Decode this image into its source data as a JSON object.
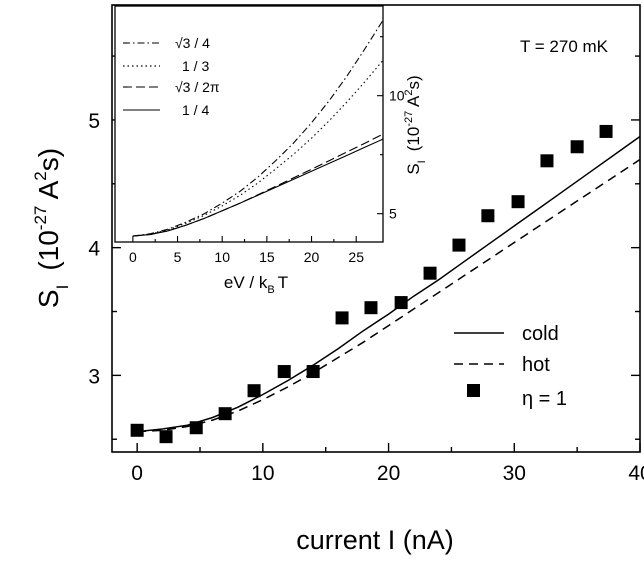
{
  "chart_data": [
    {
      "type": "line",
      "xlabel": "current I  (nA)",
      "ylabel_main": "S",
      "ylabel_sub": "I",
      "ylabel_units_open": "(10",
      "ylabel_units_exp": "-27",
      "ylabel_units_mid": " A",
      "ylabel_units_sq": "2",
      "ylabel_units_close": "s)",
      "xlim": [
        -2,
        40
      ],
      "ylim": [
        2.4,
        5.9
      ],
      "xticks": [
        "0",
        "10",
        "20",
        "30",
        "40"
      ],
      "xtick_values": [
        0,
        10,
        20,
        30,
        40
      ],
      "yticks": [
        "3",
        "4",
        "5"
      ],
      "ytick_values": [
        3,
        4,
        5
      ],
      "annotation": "T = 270 mK",
      "legend_position": "bottom-right",
      "series": [
        {
          "name": "cold",
          "style": "solid",
          "x": [
            0,
            2,
            4,
            6,
            8,
            10,
            12,
            14,
            16,
            18,
            20,
            22,
            24,
            26,
            28,
            30,
            32,
            34,
            36,
            38,
            40
          ],
          "y": [
            2.56,
            2.58,
            2.61,
            2.67,
            2.75,
            2.85,
            2.96,
            3.08,
            3.21,
            3.35,
            3.48,
            3.62,
            3.75,
            3.89,
            4.03,
            4.17,
            4.31,
            4.45,
            4.59,
            4.73,
            4.87
          ]
        },
        {
          "name": "hot",
          "style": "dashed",
          "x": [
            0,
            2,
            4,
            6,
            8,
            10,
            12,
            14,
            16,
            18,
            20,
            22,
            24,
            26,
            28,
            30,
            32,
            34,
            36,
            38,
            40
          ],
          "y": [
            2.56,
            2.57,
            2.6,
            2.65,
            2.72,
            2.81,
            2.91,
            3.02,
            3.14,
            3.26,
            3.39,
            3.52,
            3.65,
            3.78,
            3.91,
            4.04,
            4.17,
            4.3,
            4.43,
            4.56,
            4.69
          ]
        },
        {
          "name": "η = 1",
          "style": "square-markers",
          "x": [
            0,
            2.3,
            4.7,
            7.0,
            9.3,
            11.7,
            14.0,
            16.3,
            18.6,
            21.0,
            23.3,
            25.6,
            27.9,
            30.3,
            32.6,
            35.0,
            37.3
          ],
          "y": [
            2.57,
            2.52,
            2.59,
            2.7,
            2.88,
            3.03,
            3.03,
            3.45,
            3.53,
            3.57,
            3.8,
            4.02,
            4.25,
            4.36,
            4.68,
            4.79,
            4.91
          ]
        }
      ]
    },
    {
      "type": "line",
      "xlabel_main": "eV / k",
      "xlabel_sub": "B",
      "xlabel_tail": "T",
      "ylabel_main": "S",
      "ylabel_sub": "I",
      "ylabel_units_open": "(10",
      "ylabel_units_exp": "-27",
      "ylabel_units_mid": " A",
      "ylabel_units_sq": "2",
      "ylabel_units_close": "s)",
      "xlim": [
        -2,
        28
      ],
      "ylim": [
        3.8,
        13.8
      ],
      "xticks": [
        "0",
        "5",
        "10",
        "15",
        "20",
        "25"
      ],
      "xtick_values": [
        0,
        5,
        10,
        15,
        20,
        25
      ],
      "yticks": [
        "5",
        "10"
      ],
      "ytick_values": [
        5,
        10
      ],
      "legend_position": "top-left",
      "series": [
        {
          "name": "√3 / 4",
          "style": "dashdot",
          "x": [
            0,
            2,
            4,
            6,
            8,
            10,
            12,
            14,
            16,
            18,
            20,
            22,
            24,
            26,
            28
          ],
          "y": [
            4.05,
            4.15,
            4.35,
            4.65,
            5.0,
            5.45,
            5.95,
            6.55,
            7.25,
            8.0,
            8.85,
            9.8,
            10.85,
            12.0,
            13.2
          ]
        },
        {
          "name": "1 / 3",
          "style": "dotted",
          "x": [
            0,
            2,
            4,
            6,
            8,
            10,
            12,
            14,
            16,
            18,
            20,
            22,
            24,
            26,
            28
          ],
          "y": [
            4.05,
            4.14,
            4.32,
            4.6,
            4.93,
            5.33,
            5.78,
            6.3,
            6.9,
            7.52,
            8.2,
            8.95,
            9.75,
            10.6,
            11.5
          ]
        },
        {
          "name": "√3 / 2π",
          "style": "dashed",
          "x": [
            0,
            2,
            4,
            6,
            8,
            10,
            12,
            14,
            16,
            18,
            20,
            22,
            24,
            26,
            28
          ],
          "y": [
            4.05,
            4.12,
            4.28,
            4.52,
            4.8,
            5.12,
            5.45,
            5.8,
            6.16,
            6.52,
            6.88,
            7.25,
            7.62,
            7.99,
            8.37
          ]
        },
        {
          "name": "1 / 4",
          "style": "solid",
          "x": [
            0,
            2,
            4,
            6,
            8,
            10,
            12,
            14,
            16,
            18,
            20,
            22,
            24,
            26,
            28
          ],
          "y": [
            4.05,
            4.12,
            4.28,
            4.52,
            4.8,
            5.12,
            5.45,
            5.78,
            6.12,
            6.46,
            6.8,
            7.14,
            7.48,
            7.82,
            8.16
          ]
        }
      ]
    }
  ]
}
